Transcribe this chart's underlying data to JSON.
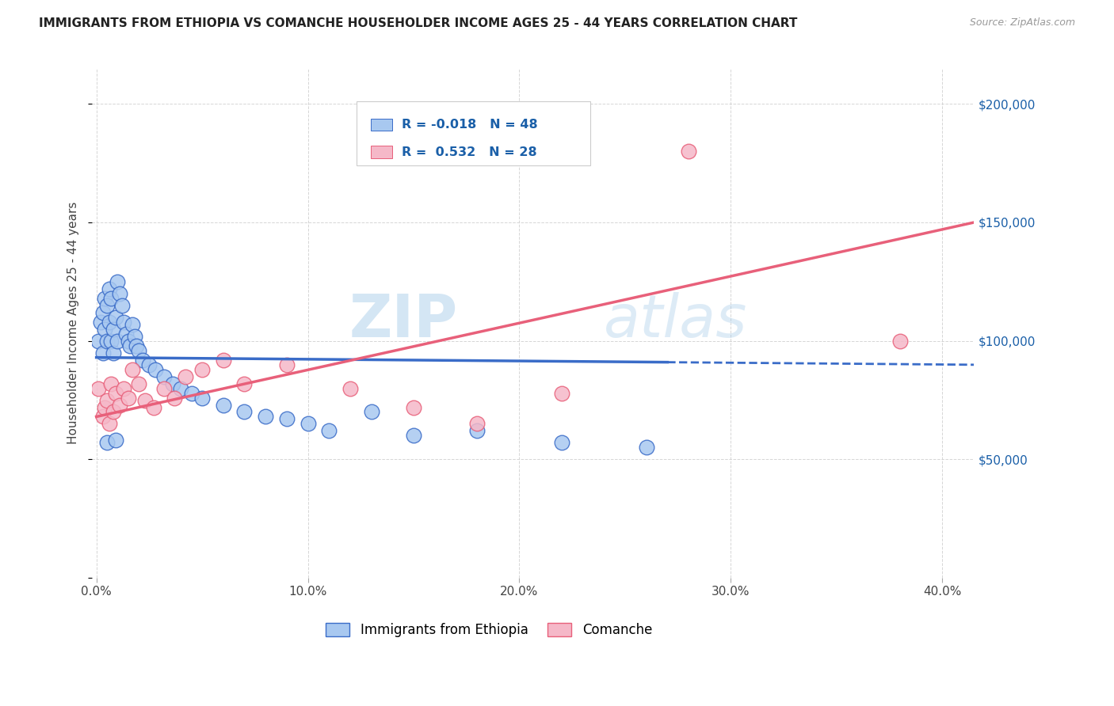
{
  "title": "IMMIGRANTS FROM ETHIOPIA VS COMANCHE HOUSEHOLDER INCOME AGES 25 - 44 YEARS CORRELATION CHART",
  "source": "Source: ZipAtlas.com",
  "ylabel": "Householder Income Ages 25 - 44 years",
  "xlabel_vals": [
    0.0,
    0.1,
    0.2,
    0.3,
    0.4
  ],
  "ylabel_vals": [
    0,
    50000,
    100000,
    150000,
    200000
  ],
  "ylim": [
    0,
    215000
  ],
  "xlim": [
    -0.002,
    0.415
  ],
  "legend_label1": "Immigrants from Ethiopia",
  "legend_label2": "Comanche",
  "r1": -0.018,
  "n1": 48,
  "r2": 0.532,
  "n2": 28,
  "color_blue": "#A8C8F0",
  "color_pink": "#F5B8C8",
  "color_blue_line": "#3A6CC8",
  "color_pink_line": "#E8607A",
  "watermark_zip": "ZIP",
  "watermark_atlas": "atlas",
  "blue_x": [
    0.001,
    0.002,
    0.003,
    0.003,
    0.004,
    0.004,
    0.005,
    0.005,
    0.006,
    0.006,
    0.007,
    0.007,
    0.008,
    0.008,
    0.009,
    0.01,
    0.01,
    0.011,
    0.012,
    0.013,
    0.014,
    0.015,
    0.016,
    0.017,
    0.018,
    0.019,
    0.02,
    0.022,
    0.025,
    0.028,
    0.032,
    0.036,
    0.04,
    0.045,
    0.05,
    0.06,
    0.07,
    0.08,
    0.09,
    0.1,
    0.11,
    0.13,
    0.15,
    0.18,
    0.22,
    0.26,
    0.005,
    0.009
  ],
  "blue_y": [
    100000,
    108000,
    95000,
    112000,
    118000,
    105000,
    100000,
    115000,
    108000,
    122000,
    118000,
    100000,
    105000,
    95000,
    110000,
    125000,
    100000,
    120000,
    115000,
    108000,
    103000,
    100000,
    98000,
    107000,
    102000,
    98000,
    96000,
    92000,
    90000,
    88000,
    85000,
    82000,
    80000,
    78000,
    76000,
    73000,
    70000,
    68000,
    67000,
    65000,
    62000,
    70000,
    60000,
    62000,
    57000,
    55000,
    57000,
    58000
  ],
  "pink_x": [
    0.001,
    0.003,
    0.004,
    0.005,
    0.006,
    0.007,
    0.008,
    0.009,
    0.011,
    0.013,
    0.015,
    0.017,
    0.02,
    0.023,
    0.027,
    0.032,
    0.037,
    0.042,
    0.05,
    0.06,
    0.07,
    0.09,
    0.12,
    0.15,
    0.18,
    0.22,
    0.28,
    0.38
  ],
  "pink_y": [
    80000,
    68000,
    72000,
    75000,
    65000,
    82000,
    70000,
    78000,
    73000,
    80000,
    76000,
    88000,
    82000,
    75000,
    72000,
    80000,
    76000,
    85000,
    88000,
    92000,
    82000,
    90000,
    80000,
    72000,
    65000,
    78000,
    180000,
    100000
  ]
}
